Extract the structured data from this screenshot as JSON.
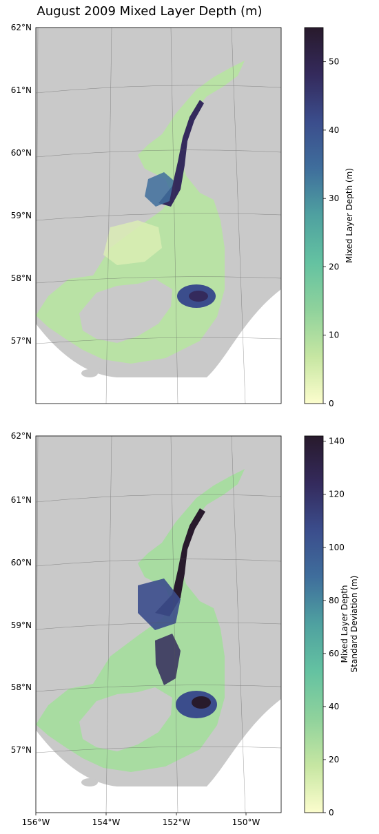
{
  "title": "August 2009 Mixed Layer Depth (m)",
  "panels": [
    {
      "id": "mean",
      "lat_labels": [
        "62°N",
        "61°N",
        "60°N",
        "59°N",
        "58°N",
        "57°N"
      ],
      "colorbar": {
        "label_lines": [
          "Mixed Layer Depth (m)"
        ],
        "ticks": [
          "0",
          "10",
          "20",
          "30",
          "40",
          "50"
        ],
        "range": [
          0,
          55
        ]
      }
    },
    {
      "id": "std",
      "lat_labels": [
        "62°N",
        "61°N",
        "60°N",
        "59°N",
        "58°N",
        "57°N"
      ],
      "colorbar": {
        "label_lines": [
          "Mixed Layer Depth",
          "Standard Deviation (m)"
        ],
        "ticks": [
          "0",
          "20",
          "40",
          "60",
          "80",
          "100",
          "120",
          "140"
        ],
        "range": [
          0,
          142
        ]
      }
    }
  ],
  "lon_labels": [
    "156°W",
    "154°W",
    "152°W",
    "150°W"
  ],
  "colors": {
    "land": "#c9c9c9",
    "cmap": [
      "#fcfdcd",
      "#c6e6a2",
      "#8fd29c",
      "#64c2a1",
      "#4fa1a0",
      "#3f6e9c",
      "#3b4d8c",
      "#342a5c",
      "#281a2c"
    ]
  }
}
